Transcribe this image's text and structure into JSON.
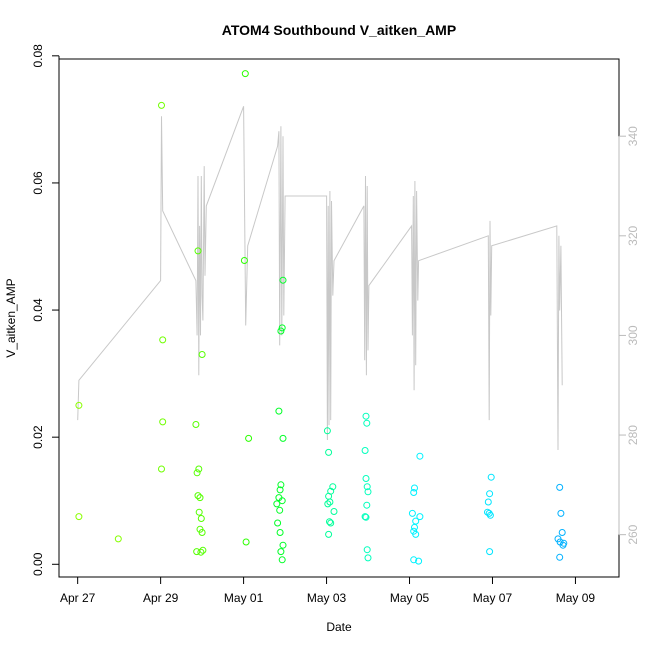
{
  "chart_data": {
    "type": "scatter",
    "title": "ATOM4 Southbound V_aitken_AMP",
    "xlabel": "Date",
    "ylabel": "V_aitken_AMP",
    "x_ticks": [
      "Apr 27",
      "Apr 29",
      "May 01",
      "May 03",
      "May 05",
      "May 07",
      "May 09"
    ],
    "x_tick_values": [
      0,
      2,
      4,
      6,
      8,
      10,
      12
    ],
    "xlim": [
      -0.45,
      13.05
    ],
    "ylim": [
      -0.002,
      0.0795
    ],
    "y_ticks": [
      0.0,
      0.02,
      0.04,
      0.06,
      0.08
    ],
    "y_tick_labels": [
      "0.00",
      "0.02",
      "0.04",
      "0.06",
      "0.08"
    ],
    "y2lim": [
      251.5,
      355.5
    ],
    "y2_ticks": [
      260,
      280,
      300,
      320,
      340
    ],
    "y2_tick_labels": [
      "260",
      "280",
      "300",
      "320",
      "340"
    ],
    "colors": {
      "line": "#c8c8c8",
      "axis": "#000000",
      "right_axis": "#bbbbbb"
    },
    "points": [
      {
        "x": 0.03,
        "y": 0.0075,
        "c": "#8aff00"
      },
      {
        "x": 0.03,
        "y": 0.025,
        "c": "#8aff00"
      },
      {
        "x": 0.98,
        "y": 0.004,
        "c": "#86ff00"
      },
      {
        "x": 2.02,
        "y": 0.0722,
        "c": "#70ff00"
      },
      {
        "x": 2.05,
        "y": 0.0353,
        "c": "#70ff00"
      },
      {
        "x": 2.05,
        "y": 0.0224,
        "c": "#70ff00"
      },
      {
        "x": 2.02,
        "y": 0.015,
        "c": "#70ff00"
      },
      {
        "x": 2.85,
        "y": 0.022,
        "c": "#55ff00"
      },
      {
        "x": 2.88,
        "y": 0.0144,
        "c": "#55ff00"
      },
      {
        "x": 2.92,
        "y": 0.015,
        "c": "#55ff00"
      },
      {
        "x": 2.9,
        "y": 0.0108,
        "c": "#55ff00"
      },
      {
        "x": 2.95,
        "y": 0.0105,
        "c": "#55ff00"
      },
      {
        "x": 2.93,
        "y": 0.0082,
        "c": "#55ff00"
      },
      {
        "x": 2.98,
        "y": 0.0072,
        "c": "#55ff00"
      },
      {
        "x": 2.95,
        "y": 0.0055,
        "c": "#55ff00"
      },
      {
        "x": 3.0,
        "y": 0.005,
        "c": "#55ff00"
      },
      {
        "x": 2.87,
        "y": 0.002,
        "c": "#55ff00"
      },
      {
        "x": 2.97,
        "y": 0.0019,
        "c": "#55ff00"
      },
      {
        "x": 3.02,
        "y": 0.0022,
        "c": "#55ff00"
      },
      {
        "x": 2.9,
        "y": 0.0493,
        "c": "#55ff00"
      },
      {
        "x": 3.0,
        "y": 0.033,
        "c": "#55ff00"
      },
      {
        "x": 4.04,
        "y": 0.0772,
        "c": "#2cff00"
      },
      {
        "x": 4.02,
        "y": 0.0478,
        "c": "#2cff00"
      },
      {
        "x": 4.12,
        "y": 0.0198,
        "c": "#2cff00"
      },
      {
        "x": 4.06,
        "y": 0.0035,
        "c": "#2cff00"
      },
      {
        "x": 4.85,
        "y": 0.0241,
        "c": "#00ff27"
      },
      {
        "x": 4.95,
        "y": 0.0198,
        "c": "#00ff27"
      },
      {
        "x": 4.9,
        "y": 0.0125,
        "c": "#00ff27"
      },
      {
        "x": 4.88,
        "y": 0.0117,
        "c": "#00ff27"
      },
      {
        "x": 4.85,
        "y": 0.0105,
        "c": "#00ff27"
      },
      {
        "x": 4.93,
        "y": 0.01,
        "c": "#00ff27"
      },
      {
        "x": 4.8,
        "y": 0.0095,
        "c": "#00ff27"
      },
      {
        "x": 4.87,
        "y": 0.0085,
        "c": "#00ff27"
      },
      {
        "x": 4.82,
        "y": 0.0065,
        "c": "#00ff27"
      },
      {
        "x": 4.88,
        "y": 0.005,
        "c": "#00ff27"
      },
      {
        "x": 4.95,
        "y": 0.003,
        "c": "#00ff27"
      },
      {
        "x": 4.9,
        "y": 0.002,
        "c": "#00ff27"
      },
      {
        "x": 4.93,
        "y": 0.0007,
        "c": "#00ff27"
      },
      {
        "x": 4.95,
        "y": 0.0447,
        "c": "#00ff27"
      },
      {
        "x": 4.93,
        "y": 0.0372,
        "c": "#00ff27"
      },
      {
        "x": 4.9,
        "y": 0.0367,
        "c": "#00ff27"
      },
      {
        "x": 6.02,
        "y": 0.021,
        "c": "#00ff9a"
      },
      {
        "x": 6.05,
        "y": 0.0176,
        "c": "#00ff9a"
      },
      {
        "x": 6.15,
        "y": 0.0122,
        "c": "#00ff9a"
      },
      {
        "x": 6.1,
        "y": 0.0115,
        "c": "#00ff9a"
      },
      {
        "x": 6.05,
        "y": 0.0107,
        "c": "#00ff9a"
      },
      {
        "x": 6.08,
        "y": 0.0098,
        "c": "#00ff9a"
      },
      {
        "x": 6.03,
        "y": 0.0095,
        "c": "#00ff9a"
      },
      {
        "x": 6.18,
        "y": 0.0083,
        "c": "#00ff9a"
      },
      {
        "x": 6.07,
        "y": 0.0067,
        "c": "#00ff9a"
      },
      {
        "x": 6.1,
        "y": 0.0065,
        "c": "#00ff9a"
      },
      {
        "x": 6.05,
        "y": 0.0047,
        "c": "#00ff9a"
      },
      {
        "x": 6.95,
        "y": 0.0233,
        "c": "#00ffbc"
      },
      {
        "x": 6.97,
        "y": 0.0222,
        "c": "#00ffbc"
      },
      {
        "x": 6.93,
        "y": 0.0179,
        "c": "#00ffbc"
      },
      {
        "x": 6.95,
        "y": 0.0135,
        "c": "#00ffbc"
      },
      {
        "x": 6.98,
        "y": 0.0122,
        "c": "#00ffbc"
      },
      {
        "x": 7.0,
        "y": 0.0114,
        "c": "#00ffbc"
      },
      {
        "x": 6.97,
        "y": 0.0093,
        "c": "#00ffbc"
      },
      {
        "x": 6.93,
        "y": 0.0075,
        "c": "#00ffbc"
      },
      {
        "x": 6.95,
        "y": 0.0074,
        "c": "#00ffbc"
      },
      {
        "x": 6.98,
        "y": 0.0023,
        "c": "#00ffbc"
      },
      {
        "x": 7.0,
        "y": 0.001,
        "c": "#00ffbc"
      },
      {
        "x": 8.25,
        "y": 0.017,
        "c": "#00f2ff"
      },
      {
        "x": 8.12,
        "y": 0.012,
        "c": "#00f2ff"
      },
      {
        "x": 8.1,
        "y": 0.0113,
        "c": "#00f2ff"
      },
      {
        "x": 8.07,
        "y": 0.008,
        "c": "#00f2ff"
      },
      {
        "x": 8.25,
        "y": 0.0075,
        "c": "#00f2ff"
      },
      {
        "x": 8.15,
        "y": 0.0068,
        "c": "#00f2ff"
      },
      {
        "x": 8.12,
        "y": 0.0058,
        "c": "#00f2ff"
      },
      {
        "x": 8.1,
        "y": 0.0052,
        "c": "#00f2ff"
      },
      {
        "x": 8.15,
        "y": 0.0047,
        "c": "#00f2ff"
      },
      {
        "x": 8.1,
        "y": 0.0007,
        "c": "#00f2ff"
      },
      {
        "x": 8.22,
        "y": 0.0005,
        "c": "#00f2ff"
      },
      {
        "x": 9.97,
        "y": 0.0137,
        "c": "#00e5ff"
      },
      {
        "x": 9.93,
        "y": 0.0111,
        "c": "#00e5ff"
      },
      {
        "x": 9.9,
        "y": 0.0098,
        "c": "#00e5ff"
      },
      {
        "x": 9.88,
        "y": 0.0082,
        "c": "#00e5ff"
      },
      {
        "x": 9.92,
        "y": 0.008,
        "c": "#00e5ff"
      },
      {
        "x": 9.95,
        "y": 0.0077,
        "c": "#00e5ff"
      },
      {
        "x": 9.93,
        "y": 0.002,
        "c": "#00e5ff"
      },
      {
        "x": 11.62,
        "y": 0.0121,
        "c": "#00b1ff"
      },
      {
        "x": 11.65,
        "y": 0.008,
        "c": "#00b1ff"
      },
      {
        "x": 11.68,
        "y": 0.005,
        "c": "#00b1ff"
      },
      {
        "x": 11.58,
        "y": 0.004,
        "c": "#00b1ff"
      },
      {
        "x": 11.63,
        "y": 0.0035,
        "c": "#00b1ff"
      },
      {
        "x": 11.72,
        "y": 0.0033,
        "c": "#00b1ff"
      },
      {
        "x": 11.7,
        "y": 0.003,
        "c": "#00b1ff"
      },
      {
        "x": 11.62,
        "y": 0.0011,
        "c": "#00b1ff"
      }
    ],
    "line_series": [
      [
        0.0,
        283
      ],
      [
        0.03,
        291
      ],
      [
        2.0,
        311
      ],
      [
        2.02,
        344
      ],
      [
        2.05,
        325
      ],
      [
        2.85,
        311
      ],
      [
        2.88,
        300
      ],
      [
        2.9,
        332
      ],
      [
        2.92,
        292
      ],
      [
        2.94,
        322
      ],
      [
        2.96,
        300
      ],
      [
        2.98,
        332
      ],
      [
        3.0,
        308
      ],
      [
        3.02,
        303
      ],
      [
        3.05,
        334
      ],
      [
        3.07,
        312
      ],
      [
        3.1,
        326
      ],
      [
        4.0,
        346
      ],
      [
        4.05,
        302
      ],
      [
        4.1,
        318
      ],
      [
        4.82,
        338
      ],
      [
        4.85,
        341
      ],
      [
        4.87,
        298
      ],
      [
        4.9,
        342
      ],
      [
        4.92,
        300
      ],
      [
        4.95,
        340
      ],
      [
        4.97,
        304
      ],
      [
        5.0,
        328
      ],
      [
        6.0,
        328
      ],
      [
        6.02,
        279
      ],
      [
        6.04,
        326
      ],
      [
        6.06,
        282
      ],
      [
        6.08,
        329
      ],
      [
        6.1,
        283
      ],
      [
        6.12,
        327
      ],
      [
        6.15,
        308
      ],
      [
        6.18,
        315
      ],
      [
        6.9,
        326
      ],
      [
        6.92,
        295
      ],
      [
        6.94,
        332
      ],
      [
        6.96,
        292
      ],
      [
        6.98,
        330
      ],
      [
        7.0,
        297
      ],
      [
        7.02,
        310
      ],
      [
        8.05,
        322
      ],
      [
        8.07,
        300
      ],
      [
        8.09,
        328
      ],
      [
        8.11,
        289
      ],
      [
        8.13,
        331
      ],
      [
        8.15,
        294
      ],
      [
        8.17,
        329
      ],
      [
        8.2,
        307
      ],
      [
        8.22,
        315
      ],
      [
        9.9,
        320
      ],
      [
        9.92,
        283
      ],
      [
        9.94,
        323
      ],
      [
        9.96,
        304
      ],
      [
        9.98,
        318
      ],
      [
        11.55,
        322
      ],
      [
        11.58,
        277
      ],
      [
        11.6,
        320
      ],
      [
        11.62,
        305
      ],
      [
        11.65,
        318
      ],
      [
        11.68,
        290
      ]
    ]
  }
}
